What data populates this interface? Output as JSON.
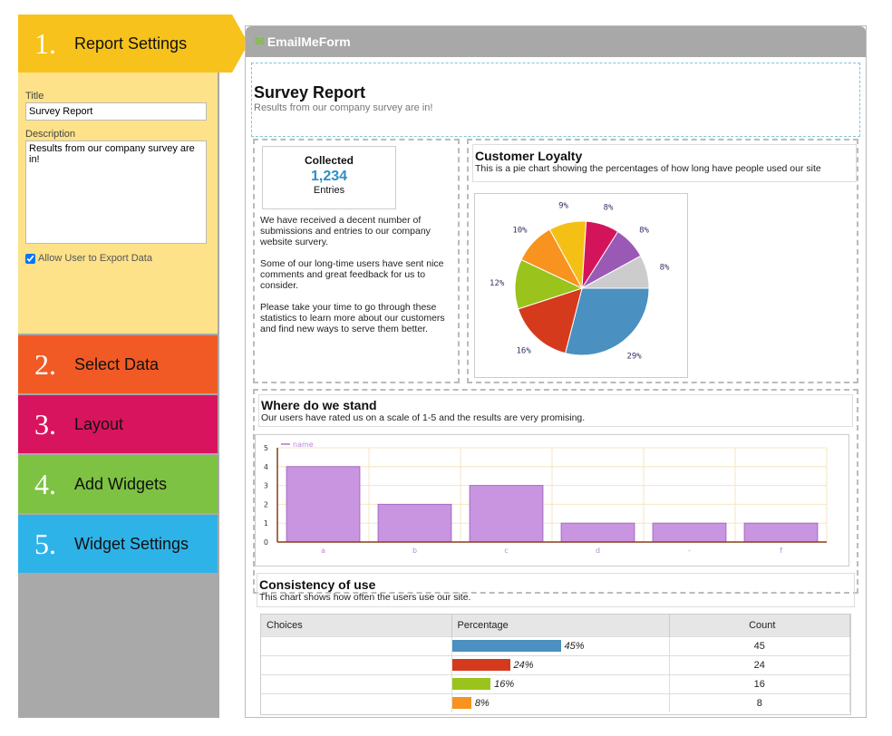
{
  "wizard": {
    "steps": [
      {
        "num": "1.",
        "label": "Report Settings",
        "color": "#f7c21b"
      },
      {
        "num": "2.",
        "label": "Select Data",
        "color": "#f15a24"
      },
      {
        "num": "3.",
        "label": "Layout",
        "color": "#d9145f"
      },
      {
        "num": "4.",
        "label": "Add Widgets",
        "color": "#7dc242"
      },
      {
        "num": "5.",
        "label": "Widget Settings",
        "color": "#2eb3e8"
      }
    ],
    "settings": {
      "title_label": "Title",
      "title_value": "Survey Report",
      "description_label": "Description",
      "description_value": "Results from our company survey are in!",
      "export_label": "Allow User to Export Data",
      "export_checked": true
    }
  },
  "app": {
    "logo": "EmailMeForm",
    "logo_icon": "envelope-arrow-icon"
  },
  "report": {
    "title": "Survey Report",
    "subtitle": "Results from our company survey are in!"
  },
  "collected": {
    "title": "Collected",
    "value": "1,234",
    "unit": "Entries"
  },
  "intro": {
    "p1": "We have received a decent number of submissions and entries to our company website survery.",
    "p2": "Some of our long-time users have sent nice comments and great feedback for us to consider.",
    "p3": "Please take your time to go through these statistics to learn more about our customers and find new ways to serve them better."
  },
  "loyalty": {
    "title": "Customer Loyalty",
    "subtitle": "This is a pie chart showing the percentages of how long have people used our site"
  },
  "stand": {
    "title": "Where do we stand",
    "subtitle": "Our users have rated us on a scale of 1-5 and the results are very promising."
  },
  "consistency": {
    "title": "Consistency of use",
    "subtitle": "This chart shows how often the users use our site.",
    "columns": [
      "Choices",
      "Percentage",
      "Count"
    ],
    "rows": [
      {
        "choice": "",
        "percent": 45,
        "percent_label": "45%",
        "count": "45",
        "color": "#4a90c0"
      },
      {
        "choice": "",
        "percent": 24,
        "percent_label": "24%",
        "count": "24",
        "color": "#d63a1c"
      },
      {
        "choice": "",
        "percent": 16,
        "percent_label": "16%",
        "count": "16",
        "color": "#9ac31c"
      },
      {
        "choice": "",
        "percent": 8,
        "percent_label": "8%",
        "count": "8",
        "color": "#f7931e"
      }
    ]
  },
  "chart_data": [
    {
      "type": "pie",
      "title": "",
      "slices": [
        {
          "label": "29%",
          "value": 29,
          "color": "#4a90c0"
        },
        {
          "label": "16%",
          "value": 16,
          "color": "#d63a1c"
        },
        {
          "label": "12%",
          "value": 12,
          "color": "#9ac31c"
        },
        {
          "label": "10%",
          "value": 10,
          "color": "#f7931e"
        },
        {
          "label": "9%",
          "value": 9,
          "color": "#f5c016"
        },
        {
          "label": "8%",
          "value": 8,
          "color": "#d4145a"
        },
        {
          "label": "8%",
          "value": 8,
          "color": "#9b59b6"
        },
        {
          "label": "8%",
          "value": 8,
          "color": "#cccccc"
        }
      ]
    },
    {
      "type": "bar",
      "legend": "name",
      "categories": [
        "a",
        "b",
        "c",
        "d",
        "-",
        "f"
      ],
      "values": [
        4,
        2,
        3,
        1,
        1,
        1
      ],
      "ylim": [
        0,
        5
      ],
      "yticks": [
        "0",
        "1",
        "2",
        "3",
        "4",
        "5"
      ],
      "bar_color": "#c994e0",
      "grid": true
    }
  ]
}
